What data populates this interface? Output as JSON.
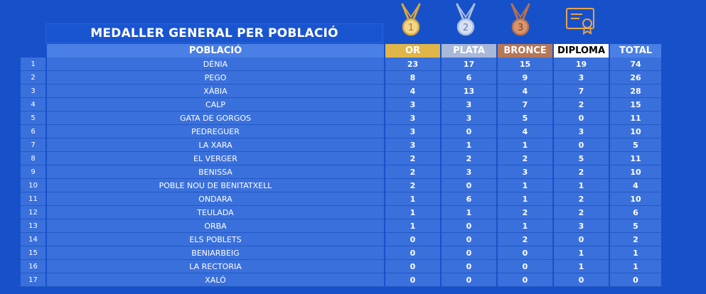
{
  "title": "MEDALLER GENERAL PER POBLACIÓ",
  "icons": [
    {
      "name": "gold-medal-icon",
      "number": "1",
      "color": "#d9a93a"
    },
    {
      "name": "silver-medal-icon",
      "number": "2",
      "color": "#9fb3d6"
    },
    {
      "name": "bronze-medal-icon",
      "number": "3",
      "color": "#b8714c"
    },
    {
      "name": "diploma-icon",
      "color": "#e8a44a"
    }
  ],
  "headers": {
    "poblacio": "POBLACIÓ",
    "or": "OR",
    "plata": "PLATA",
    "bronce": "BRONCE",
    "diploma": "DIPLOMA",
    "total": "TOTAL"
  },
  "rows": [
    {
      "n": "1",
      "name": "DÉNIA",
      "or": "23",
      "plata": "17",
      "bronce": "15",
      "diploma": "19",
      "total": "74"
    },
    {
      "n": "2",
      "name": "PEGO",
      "or": "8",
      "plata": "6",
      "bronce": "9",
      "diploma": "3",
      "total": "26"
    },
    {
      "n": "3",
      "name": "XÀBIA",
      "or": "4",
      "plata": "13",
      "bronce": "4",
      "diploma": "7",
      "total": "28"
    },
    {
      "n": "4",
      "name": "CALP",
      "or": "3",
      "plata": "3",
      "bronce": "7",
      "diploma": "2",
      "total": "15"
    },
    {
      "n": "5",
      "name": "GATA DE GORGOS",
      "or": "3",
      "plata": "3",
      "bronce": "5",
      "diploma": "0",
      "total": "11"
    },
    {
      "n": "6",
      "name": "PEDREGUER",
      "or": "3",
      "plata": "0",
      "bronce": "4",
      "diploma": "3",
      "total": "10"
    },
    {
      "n": "7",
      "name": "LA XARA",
      "or": "3",
      "plata": "1",
      "bronce": "1",
      "diploma": "0",
      "total": "5"
    },
    {
      "n": "8",
      "name": "EL VERGER",
      "or": "2",
      "plata": "2",
      "bronce": "2",
      "diploma": "5",
      "total": "11"
    },
    {
      "n": "9",
      "name": "BENISSA",
      "or": "2",
      "plata": "3",
      "bronce": "3",
      "diploma": "2",
      "total": "10"
    },
    {
      "n": "10",
      "name": "POBLE NOU DE BENITATXELL",
      "or": "2",
      "plata": "0",
      "bronce": "1",
      "diploma": "1",
      "total": "4"
    },
    {
      "n": "11",
      "name": "ONDARA",
      "or": "1",
      "plata": "6",
      "bronce": "1",
      "diploma": "2",
      "total": "10"
    },
    {
      "n": "12",
      "name": "TEULADA",
      "or": "1",
      "plata": "1",
      "bronce": "2",
      "diploma": "2",
      "total": "6"
    },
    {
      "n": "13",
      "name": "ORBA",
      "or": "1",
      "plata": "0",
      "bronce": "1",
      "diploma": "3",
      "total": "5"
    },
    {
      "n": "14",
      "name": "ELS POBLETS",
      "or": "0",
      "plata": "0",
      "bronce": "2",
      "diploma": "0",
      "total": "2"
    },
    {
      "n": "15",
      "name": "BENIARBEIG",
      "or": "0",
      "plata": "0",
      "bronce": "0",
      "diploma": "1",
      "total": "1"
    },
    {
      "n": "16",
      "name": "LA RECTORIA",
      "or": "0",
      "plata": "0",
      "bronce": "0",
      "diploma": "1",
      "total": "1"
    },
    {
      "n": "17",
      "name": "XALÓ",
      "or": "0",
      "plata": "0",
      "bronce": "0",
      "diploma": "0",
      "total": "0"
    }
  ]
}
